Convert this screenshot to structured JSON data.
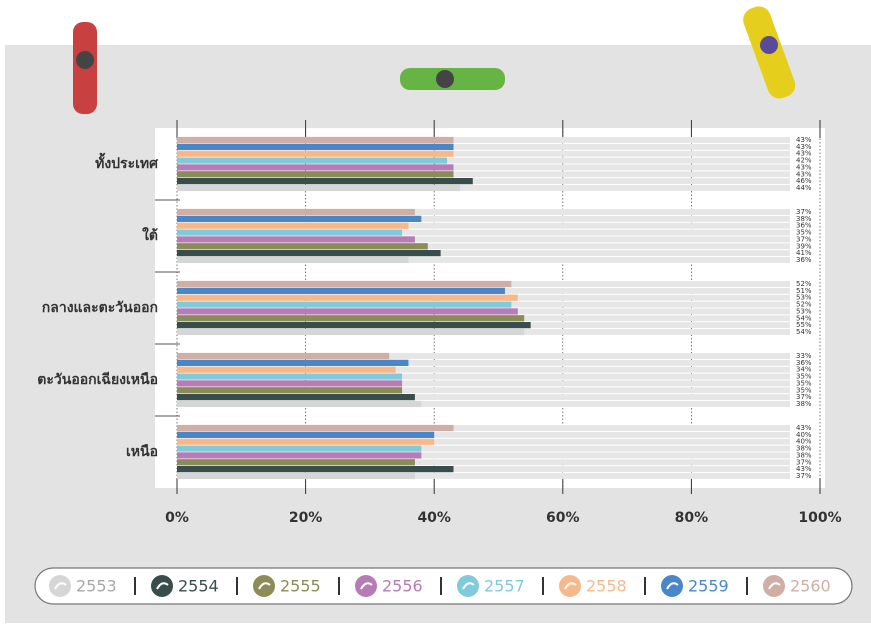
{
  "chart_data": {
    "type": "bar",
    "orientation": "horizontal",
    "categories": [
      "ทั้งประเทศ",
      "ใต้",
      "กลางและตะวันออก",
      "ตะวันออกเฉียงเหนือ",
      "เหนือ"
    ],
    "series": [
      {
        "name": "2553",
        "color": "#d6d6d6",
        "values": [
          44,
          36,
          54,
          38,
          37
        ],
        "value_labels": [
          "44%",
          "36%",
          "54%",
          "38%",
          "37%"
        ]
      },
      {
        "name": "2554",
        "color": "#3a4d4d",
        "values": [
          46,
          41,
          55,
          37,
          43
        ],
        "value_labels": [
          "46%",
          "41%",
          "55%",
          "37%",
          "43%"
        ]
      },
      {
        "name": "2555",
        "color": "#8c8c58",
        "values": [
          43,
          39,
          54,
          35,
          37
        ],
        "value_labels": [
          "43%",
          "39%",
          "54%",
          "35%",
          "37%"
        ]
      },
      {
        "name": "2556",
        "color": "#b77bb5",
        "values": [
          43,
          37,
          53,
          35,
          38
        ],
        "value_labels": [
          "43%",
          "37%",
          "53%",
          "35%",
          "38%"
        ]
      },
      {
        "name": "2557",
        "color": "#7fcadb",
        "values": [
          42,
          35,
          52,
          35,
          38
        ],
        "value_labels": [
          "42%",
          "35%",
          "52%",
          "35%",
          "38%"
        ]
      },
      {
        "name": "2558",
        "color": "#f6b98b",
        "values": [
          43,
          36,
          53,
          34,
          40
        ],
        "value_labels": [
          "43%",
          "36%",
          "53%",
          "34%",
          "40%"
        ]
      },
      {
        "name": "2559",
        "color": "#4a87c9",
        "values": [
          43,
          38,
          51,
          36,
          40
        ],
        "value_labels": [
          "43%",
          "38%",
          "51%",
          "36%",
          "40%"
        ]
      },
      {
        "name": "2560",
        "color": "#cfaea6",
        "values": [
          43,
          37,
          52,
          33,
          43
        ],
        "value_labels": [
          "43%",
          "37%",
          "52%",
          "33%",
          "43%"
        ]
      }
    ],
    "xlim": [
      0,
      100
    ],
    "xticks": [
      {
        "value": 0,
        "label": "0%"
      },
      {
        "value": 20,
        "label": "20%"
      },
      {
        "value": 40,
        "label": "40%"
      },
      {
        "value": 60,
        "label": "60%"
      },
      {
        "value": 80,
        "label": "80%"
      },
      {
        "value": 100,
        "label": "100%"
      }
    ],
    "grid": true
  }
}
